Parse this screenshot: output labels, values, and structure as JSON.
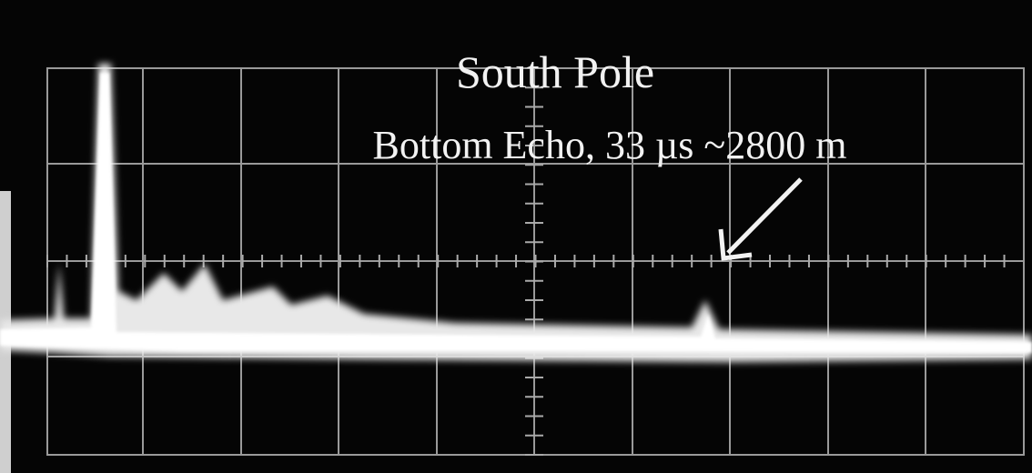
{
  "title": "South Pole",
  "annotation": "Bottom Echo, 33 µs ~2800 m"
}
